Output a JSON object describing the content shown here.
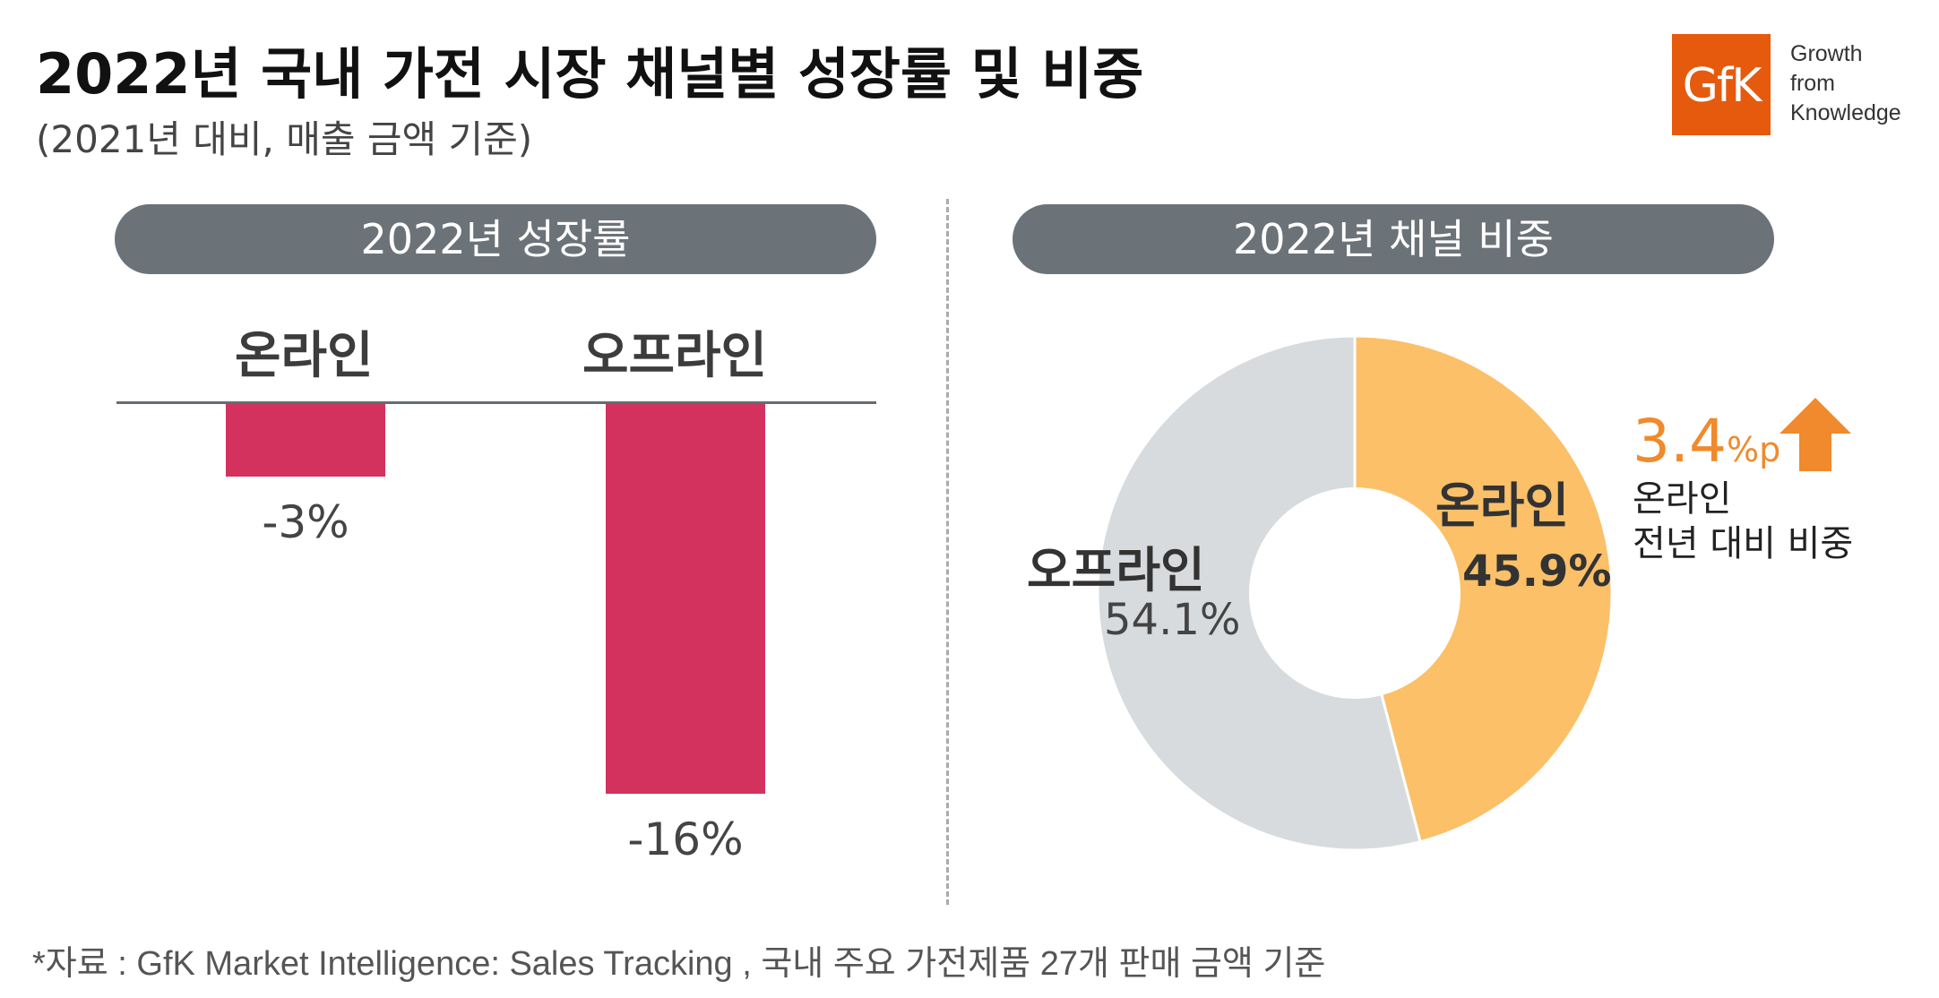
{
  "header": {
    "title": "2022년 국내 가전 시장 채널별 성장률 및 비중",
    "subtitle": "(2021년 대비, 매출 금액 기준)"
  },
  "logo": {
    "text": "GfK",
    "tagline": [
      "Growth",
      "from",
      "Knowledge"
    ]
  },
  "chart_data": [
    {
      "type": "bar",
      "title": "2022년 성장률",
      "categories": [
        "온라인",
        "오프라인"
      ],
      "values": [
        -3,
        -16
      ],
      "value_labels": [
        "-3%",
        "-16%"
      ],
      "ylim": [
        -16,
        0
      ],
      "grid": false,
      "bar_color": "#d3325f"
    },
    {
      "type": "pie",
      "title": "2022년 채널 비중",
      "donut": true,
      "slices": [
        {
          "label": "온라인",
          "value": 45.9,
          "value_label": "45.9%",
          "color": "#fbc068",
          "text_color": "#333333"
        },
        {
          "label": "오프라인",
          "value": 54.1,
          "value_label": "54.1%",
          "color": "#d8dbdd",
          "text_color": "#444444"
        }
      ],
      "annotation": {
        "value": "3.4",
        "unit": "%p",
        "direction": "up",
        "color": "#f08a2c",
        "text_lines": [
          "온라인",
          "전년 대비 비중"
        ]
      }
    }
  ],
  "source": "*자료 : GfK Market Intelligence: Sales Tracking , 국내 주요 가전제품 27개 판매 금액 기준"
}
